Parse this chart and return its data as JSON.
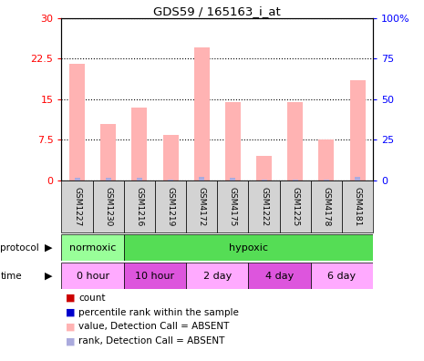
{
  "title": "GDS59 / 165163_i_at",
  "samples": [
    "GSM1227",
    "GSM1230",
    "GSM1216",
    "GSM1219",
    "GSM4172",
    "GSM4175",
    "GSM1222",
    "GSM1225",
    "GSM4178",
    "GSM4181"
  ],
  "pink_values": [
    21.5,
    10.5,
    13.5,
    8.5,
    24.5,
    14.5,
    4.5,
    14.5,
    7.5,
    18.5
  ],
  "blue_values": [
    1.5,
    1.5,
    1.5,
    0.8,
    2.0,
    1.5,
    0.8,
    0.8,
    0.8,
    2.5
  ],
  "ylim_left": [
    0,
    30
  ],
  "ylim_right": [
    0,
    100
  ],
  "yticks_left": [
    0,
    7.5,
    15,
    22.5,
    30
  ],
  "yticks_right": [
    0,
    25,
    50,
    75,
    100
  ],
  "ytick_labels_left": [
    "0",
    "7.5",
    "15",
    "22.5",
    "30"
  ],
  "ytick_labels_right": [
    "0",
    "25",
    "50",
    "75",
    "100%"
  ],
  "pink_bar_color": "#ffb3b3",
  "blue_bar_color": "#aaaadd",
  "sample_box_color": "#d3d3d3",
  "proto_groups": [
    {
      "label": "normoxic",
      "color": "#99ff99",
      "xstart": 0,
      "xend": 2
    },
    {
      "label": "hypoxic",
      "color": "#55dd55",
      "xstart": 2,
      "xend": 10
    }
  ],
  "time_groups": [
    {
      "label": "0 hour",
      "color": "#ffaaff",
      "xstart": 0,
      "xend": 2
    },
    {
      "label": "10 hour",
      "color": "#dd55dd",
      "xstart": 2,
      "xend": 4
    },
    {
      "label": "2 day",
      "color": "#ffaaff",
      "xstart": 4,
      "xend": 6
    },
    {
      "label": "4 day",
      "color": "#dd55dd",
      "xstart": 6,
      "xend": 8
    },
    {
      "label": "6 day",
      "color": "#ffaaff",
      "xstart": 8,
      "xend": 10
    }
  ],
  "legend_items": [
    {
      "label": "count",
      "color": "#cc0000"
    },
    {
      "label": "percentile rank within the sample",
      "color": "#0000cc"
    },
    {
      "label": "value, Detection Call = ABSENT",
      "color": "#ffb3b3"
    },
    {
      "label": "rank, Detection Call = ABSENT",
      "color": "#aaaadd"
    }
  ]
}
